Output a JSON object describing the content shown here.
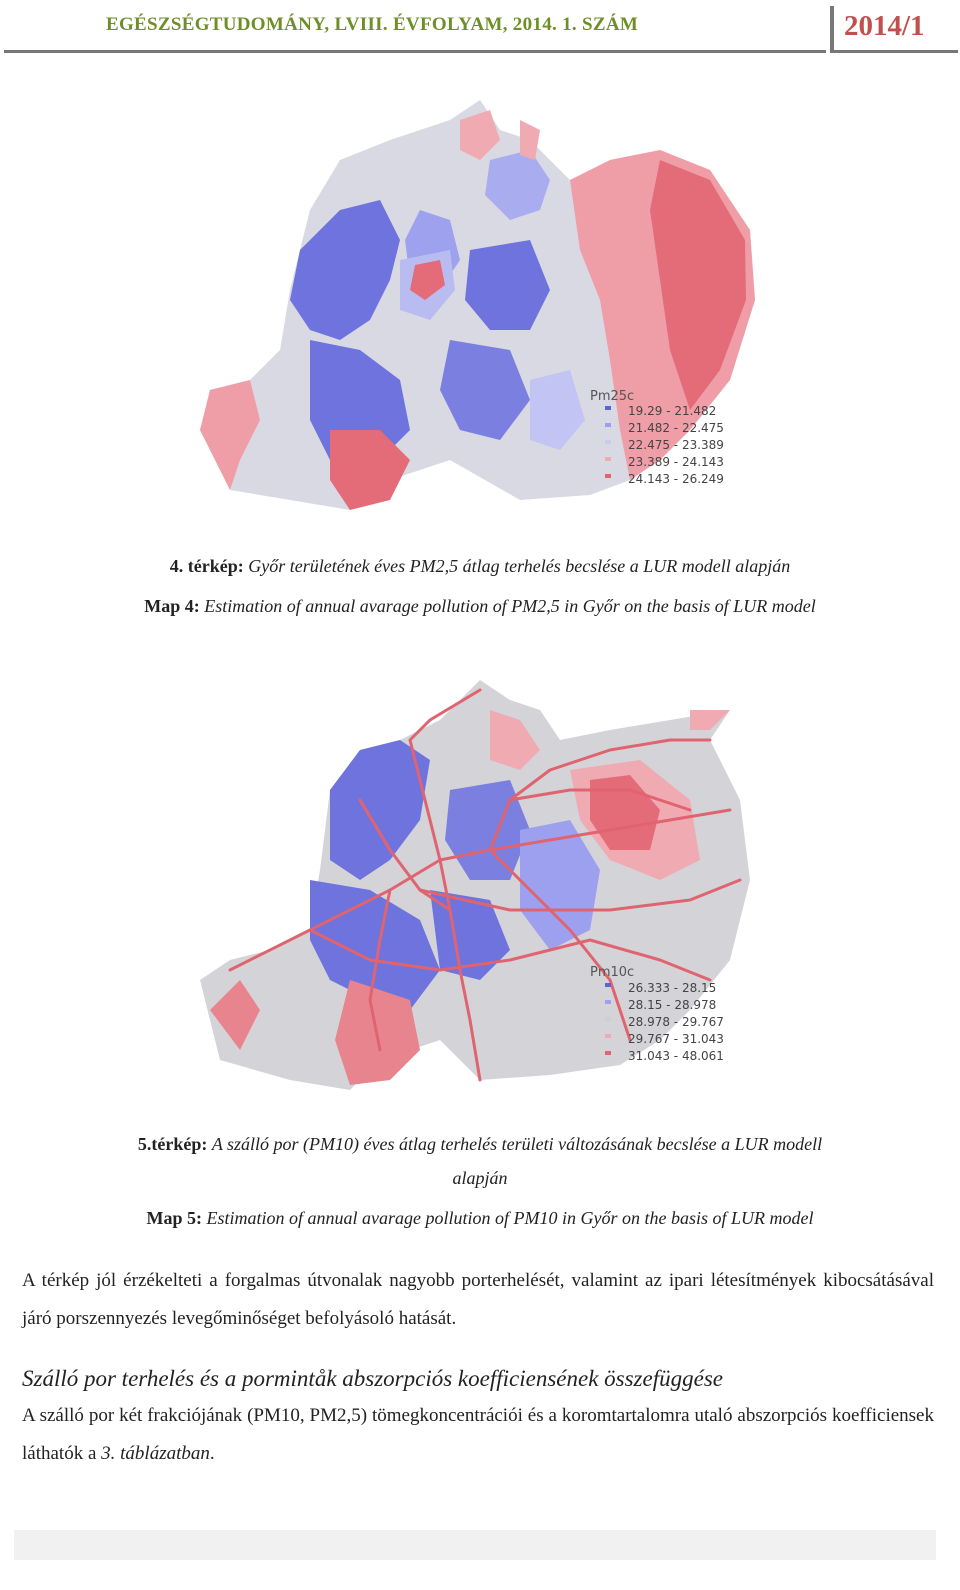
{
  "header": {
    "journal": "EGÉSZSÉGTUDOMÁNY, LVIII. ÉVFOLYAM, 2014. 1. SZÁM",
    "issue": "2014/1"
  },
  "map4": {
    "legend_title": "Pm25c",
    "legend_items": [
      "19.29 - 21.482",
      "21.482 - 22.475",
      "22.475 - 23.389",
      "23.389 - 24.143",
      "24.143 - 26.249"
    ],
    "legend_colors": [
      "#5c62d8",
      "#9da0ee",
      "#c9cbf2",
      "#f0aab2",
      "#e06470"
    ],
    "caption_hu_label": "4. térkép:",
    "caption_hu_text": "Győr területének éves  PM2,5 átlag terhelés becslése a LUR modell alapján",
    "caption_en_label": "Map 4:",
    "caption_en_text": "Estimation of annual avarage pollution of PM2,5  in Győr on the basis of LUR model"
  },
  "map5": {
    "legend_title": "Pm10c",
    "legend_items": [
      "26.333 - 28.15",
      "28.15 - 28.978",
      "28.978 - 29.767",
      "29.767 - 31.043",
      "31.043 - 48.061"
    ],
    "legend_colors": [
      "#5c62d8",
      "#9da0ee",
      "#d0d0d0",
      "#f0aab2",
      "#e06470"
    ],
    "caption_hu_label": "5.térkép:",
    "caption_hu_text": "A szálló por (PM10) éves átlag terhelés területi változásának becslése  a LUR modell",
    "caption_hu_text2": "alapján",
    "caption_en_label": "Map 5:",
    "caption_en_text": "Estimation of annual avarage pollution of PM10  in Győr on the basis of LUR model"
  },
  "body": {
    "paragraph1": "A térkép jól érzékelteti a forgalmas útvonalak nagyobb porterhelését, valamint az ipari létesítmények kibocsátásával járó porszennyezés levegőminőséget befolyásoló hatását.",
    "subheading": "Szálló por terhelés és a pormintåk abszorpciós koefficiensének összefüggése",
    "paragraph2_start": "A szálló por két frakciójának (PM10, PM2,5) tömegkoncentrációi és a koromtartalomra utaló abszorpciós koefficiensek láthatók a ",
    "paragraph2_ref": "3. táblázatban",
    "paragraph2_end": "."
  }
}
